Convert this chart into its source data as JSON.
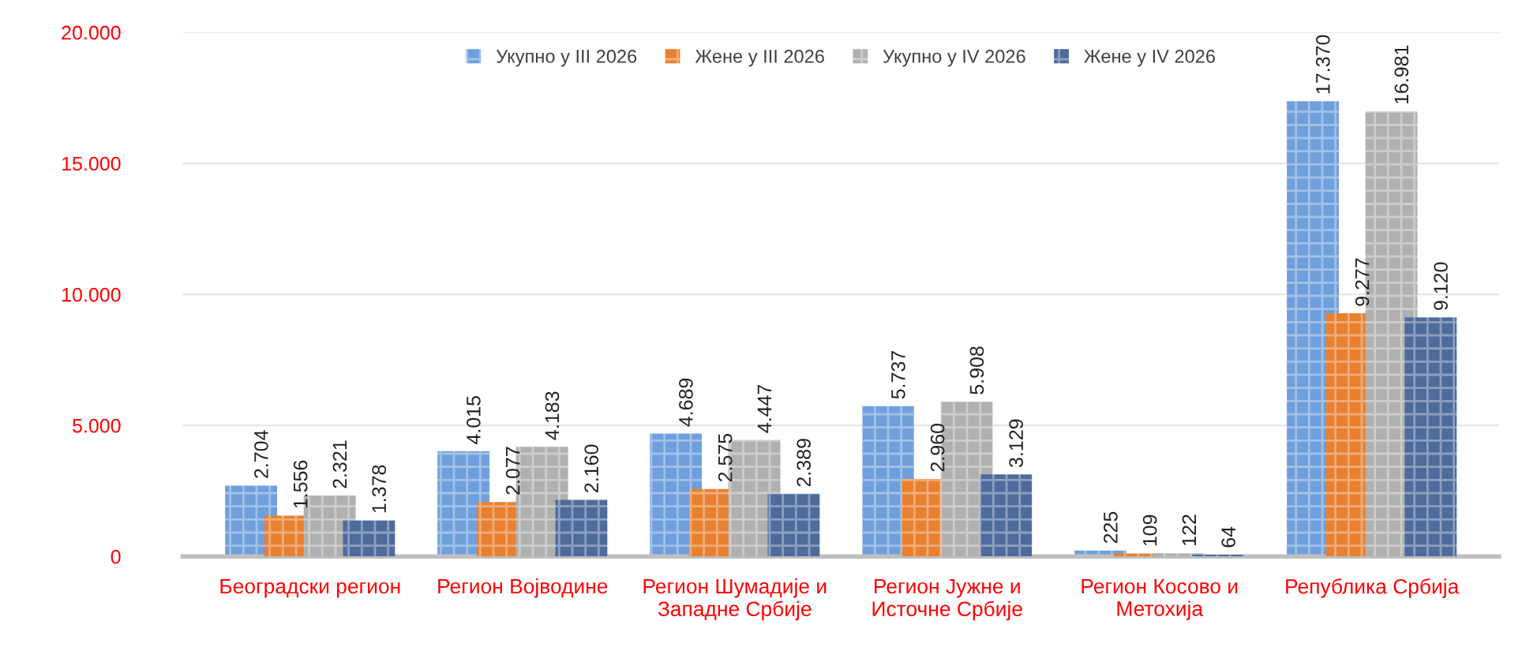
{
  "chart_data": {
    "type": "bar",
    "categories": [
      "Београдски регион",
      "Регион Војводине",
      "Регион Шумадије и Западне Србије",
      "Регион Јужне и Источне Србије",
      "Регион Косово и Метохија",
      "Република Србија"
    ],
    "series": [
      {
        "name": "Укупно у III 2026",
        "color": "#6f9fdc",
        "values": [
          2704,
          4015,
          4689,
          5737,
          225,
          17370
        ],
        "value_labels": [
          "2.704",
          "4.015",
          "4.689",
          "5.737",
          "225",
          "17.370"
        ]
      },
      {
        "name": "Жене у III 2026",
        "color": "#e8802f",
        "values": [
          1556,
          2077,
          2575,
          2960,
          109,
          9277
        ],
        "value_labels": [
          "1.556",
          "2.077",
          "2.575",
          "2.960",
          "109",
          "9.277"
        ]
      },
      {
        "name": "Укупно у IV 2026",
        "color": "#b0b0b0",
        "values": [
          2321,
          4183,
          4447,
          5908,
          122,
          16981
        ],
        "value_labels": [
          "2.321",
          "4.183",
          "4.447",
          "5.908",
          "122",
          "16.981"
        ]
      },
      {
        "name": "Жене у IV 2026",
        "color": "#4d6c9c",
        "values": [
          1378,
          2160,
          2389,
          3129,
          64,
          9120
        ],
        "value_labels": [
          "1.378",
          "2.160",
          "2.389",
          "3.129",
          "64",
          "9.120"
        ]
      }
    ],
    "ylim": [
      0,
      20000
    ],
    "yticks": [
      0,
      {
        "value": 5000,
        "label": "5.000"
      },
      {
        "value": 10000,
        "label": "10.000"
      },
      {
        "value": 15000,
        "label": "15.000"
      },
      {
        "value": 20000,
        "label": "20.000"
      }
    ],
    "grid": "y",
    "legend": "top"
  }
}
